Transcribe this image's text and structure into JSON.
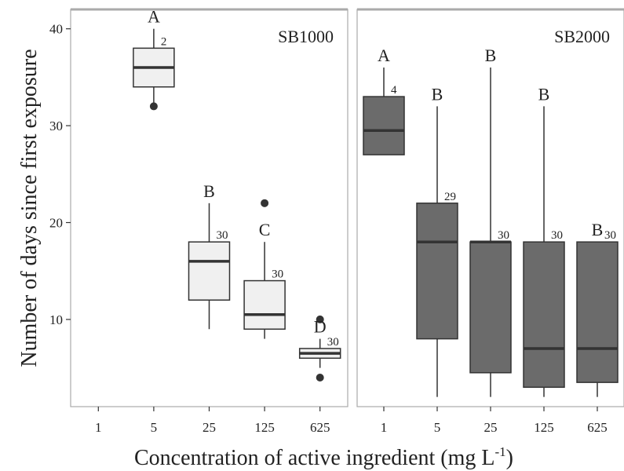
{
  "chart_data": {
    "type": "boxplot",
    "xlabel": "Concentration of active ingredient (mg L",
    "xlabel_sup": "-1",
    "xlabel_close": ")",
    "ylabel": "Number of days since first exposure",
    "categories": [
      "1",
      "5",
      "25",
      "125",
      "625"
    ],
    "yticks": [
      10,
      20,
      30,
      40
    ],
    "ylim": [
      1,
      42
    ],
    "grid": false,
    "colors": {
      "SB1000": "#f0f0f0",
      "SB2000": "#6b6b6b",
      "stroke": "#333333",
      "panel_border": "#aaaaaa"
    },
    "panels": [
      {
        "name": "SB1000",
        "boxes": [
          {
            "category": "5",
            "min": 32,
            "q1": 34,
            "median": 36,
            "q3": 38,
            "max": 40,
            "outliers": [
              32
            ],
            "letter": "A",
            "n": "2"
          },
          {
            "category": "25",
            "min": 9,
            "q1": 12,
            "median": 16,
            "q3": 18,
            "max": 22,
            "outliers": [],
            "letter": "B",
            "n": "30"
          },
          {
            "category": "125",
            "min": 8,
            "q1": 9,
            "median": 10.5,
            "q3": 14,
            "max": 18,
            "outliers": [
              22
            ],
            "letter": "C",
            "n": "30"
          },
          {
            "category": "625",
            "min": 5,
            "q1": 6,
            "median": 6.5,
            "q3": 7,
            "max": 8,
            "outliers": [
              10,
              4
            ],
            "letter": "D",
            "n": "30"
          }
        ]
      },
      {
        "name": "SB2000",
        "boxes": [
          {
            "category": "1",
            "min": 27,
            "q1": 27,
            "median": 29.5,
            "q3": 33,
            "max": 36,
            "outliers": [],
            "letter": "A",
            "n": "4"
          },
          {
            "category": "5",
            "min": 2,
            "q1": 8,
            "median": 18,
            "q3": 22,
            "max": 32,
            "outliers": [],
            "letter": "B",
            "n": "29"
          },
          {
            "category": "25",
            "min": 2,
            "q1": 4.5,
            "median": 18,
            "q3": 18,
            "max": 36,
            "outliers": [],
            "letter": "B",
            "n": "30"
          },
          {
            "category": "125",
            "min": 2,
            "q1": 3,
            "median": 7,
            "q3": 18,
            "max": 32,
            "outliers": [],
            "letter": "B",
            "n": "30"
          },
          {
            "category": "625",
            "min": 2,
            "q1": 3.5,
            "median": 7,
            "q3": 18,
            "max": 18,
            "outliers": [],
            "letter": "B",
            "n": "30"
          }
        ]
      }
    ]
  }
}
